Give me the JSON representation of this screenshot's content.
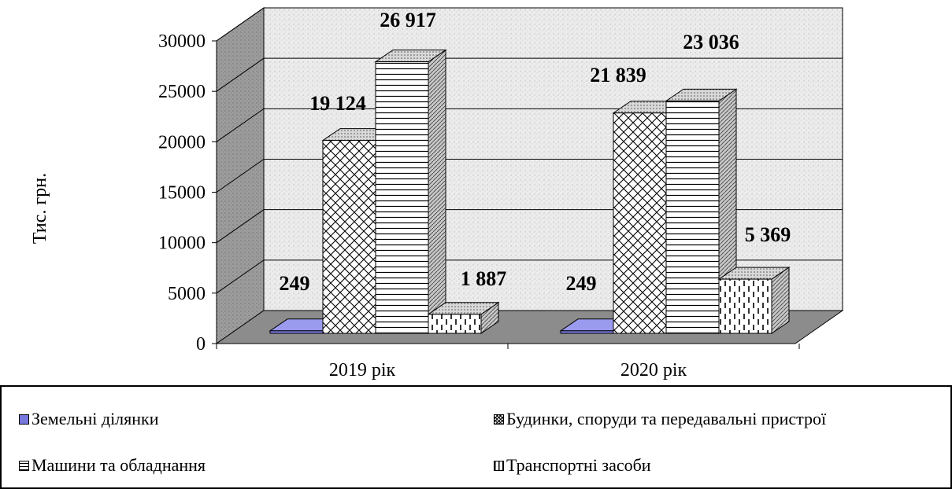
{
  "chart_data": {
    "type": "bar",
    "categories": [
      "2019 рік",
      "2020 рік"
    ],
    "series": [
      {
        "name": "Земельні ділянки",
        "values": [
          249,
          249
        ],
        "labels": [
          "249",
          "249"
        ],
        "color": "#7777dd",
        "pattern": "solid"
      },
      {
        "name": "Будинки, споруди та передавальні пристрої",
        "values": [
          19124,
          21839
        ],
        "labels": [
          "19 124",
          "21 839"
        ],
        "color": "#ffffff",
        "pattern": "crosshatch"
      },
      {
        "name": "Машини та обладнання",
        "values": [
          26917,
          23036
        ],
        "labels": [
          "26 917",
          "23 036"
        ],
        "color": "#ffffff",
        "pattern": "horizontal"
      },
      {
        "name": "Транспортні засоби",
        "values": [
          1887,
          5369
        ],
        "labels": [
          "1 887",
          "5 369"
        ],
        "color": "#ffffff",
        "pattern": "dashed-vertical"
      }
    ],
    "ylabel": "Тис. грн.",
    "ylim": [
      0,
      30000
    ],
    "yticks": [
      0,
      5000,
      10000,
      15000,
      20000,
      25000,
      30000
    ],
    "grid": true,
    "legend_position": "bottom",
    "style": "3d"
  }
}
